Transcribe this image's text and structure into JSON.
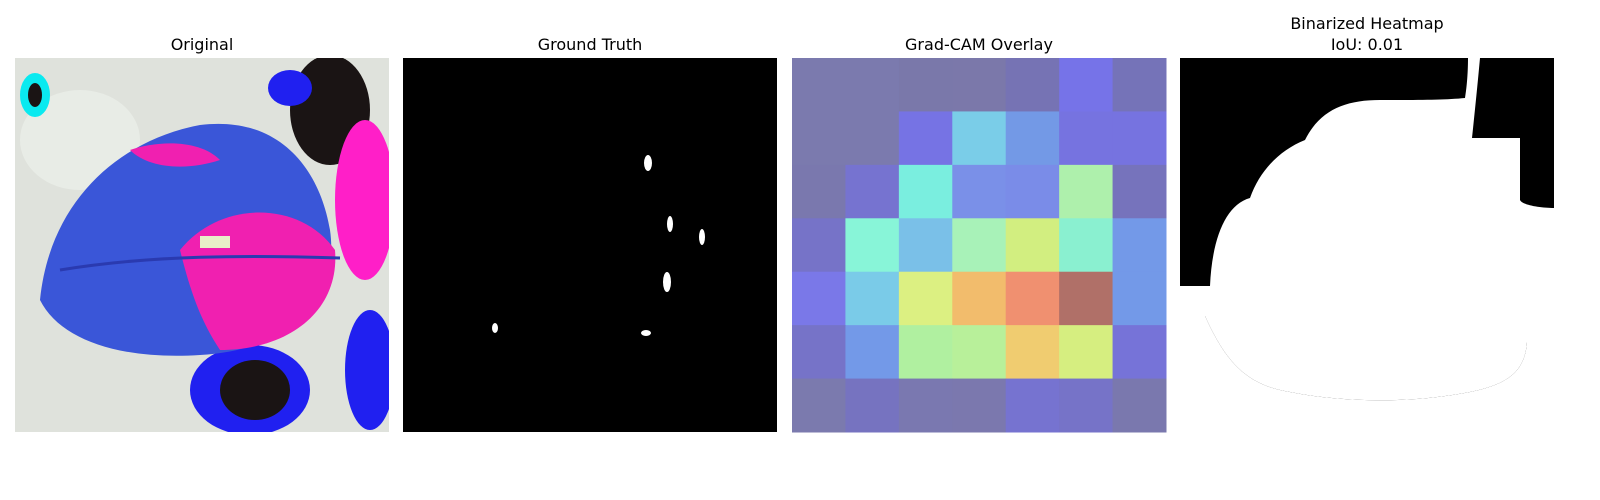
{
  "panels": [
    {
      "title": [
        "Original"
      ]
    },
    {
      "title": [
        "Ground Truth"
      ]
    },
    {
      "title": [
        "Grad-CAM Overlay"
      ]
    },
    {
      "title": [
        "Binarized Heatmap",
        "IoU: 0.01"
      ]
    }
  ]
}
